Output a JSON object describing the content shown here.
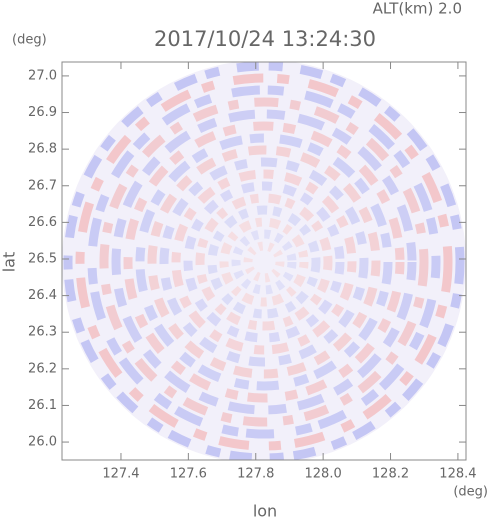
{
  "chart_data": {
    "type": "ppi",
    "title": "2017/10/24 13:24:30",
    "annotation": "ALT(km)  2.0",
    "x_label": "lon",
    "y_label": "lat",
    "x_unit": "(deg)",
    "y_unit": "(deg)",
    "xlim": [
      127.225,
      128.424
    ],
    "ylim": [
      25.951,
      27.038
    ],
    "xticks": [
      127.4,
      127.6,
      127.8,
      {
        "value": 128,
        "label": "128.0"
      },
      128.2,
      128.4
    ],
    "yticks": [
      {
        "value": 26,
        "label": "26.0"
      },
      26.1,
      26.2,
      26.3,
      26.4,
      26.5,
      26.6,
      26.7,
      26.8,
      26.9,
      {
        "value": 27,
        "label": "27.0"
      }
    ]
  }
}
